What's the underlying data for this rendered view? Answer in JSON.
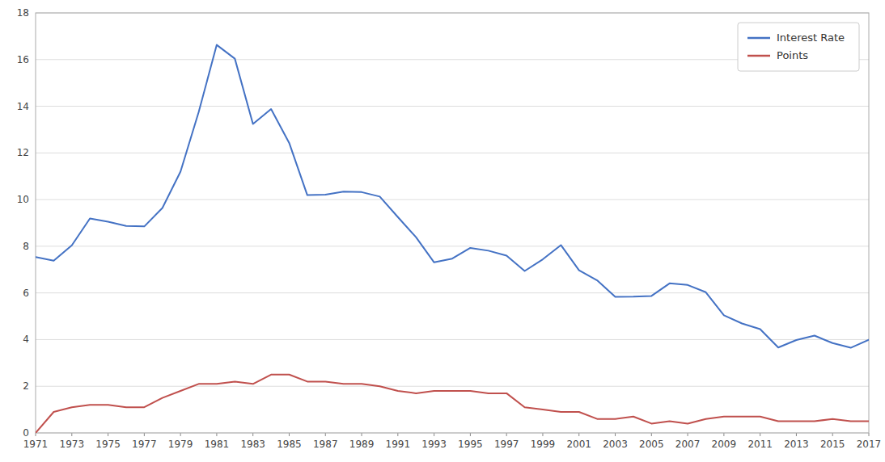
{
  "chart_data": {
    "type": "line",
    "x": [
      1971,
      1972,
      1973,
      1974,
      1975,
      1976,
      1977,
      1978,
      1979,
      1980,
      1981,
      1982,
      1983,
      1984,
      1985,
      1986,
      1987,
      1988,
      1989,
      1990,
      1991,
      1992,
      1993,
      1994,
      1995,
      1996,
      1997,
      1998,
      1999,
      2000,
      2001,
      2002,
      2003,
      2004,
      2005,
      2006,
      2007,
      2008,
      2009,
      2010,
      2011,
      2012,
      2013,
      2014,
      2015,
      2016,
      2017
    ],
    "series": [
      {
        "name": "Interest Rate",
        "color": "#4472C4",
        "values": [
          7.54,
          7.38,
          8.04,
          9.19,
          9.05,
          8.87,
          8.85,
          9.64,
          11.2,
          13.74,
          16.63,
          16.04,
          13.24,
          13.88,
          12.43,
          10.19,
          10.21,
          10.34,
          10.32,
          10.13,
          9.25,
          8.39,
          7.31,
          7.47,
          7.93,
          7.81,
          7.6,
          6.94,
          7.44,
          8.05,
          6.97,
          6.54,
          5.83,
          5.84,
          5.87,
          6.41,
          6.34,
          6.03,
          5.04,
          4.69,
          4.45,
          3.66,
          3.98,
          4.17,
          3.85,
          3.65,
          3.99
        ]
      },
      {
        "name": "Points",
        "color": "#C0504D",
        "values": [
          0.0,
          0.9,
          1.1,
          1.2,
          1.2,
          1.1,
          1.1,
          1.5,
          1.8,
          2.1,
          2.1,
          2.2,
          2.1,
          2.5,
          2.5,
          2.2,
          2.2,
          2.1,
          2.1,
          2.0,
          1.8,
          1.7,
          1.8,
          1.8,
          1.8,
          1.7,
          1.7,
          1.1,
          1.0,
          0.9,
          0.9,
          0.6,
          0.6,
          0.7,
          0.4,
          0.5,
          0.4,
          0.6,
          0.7,
          0.7,
          0.7,
          0.5,
          0.5,
          0.5,
          0.6,
          0.5,
          0.5
        ]
      }
    ],
    "xlim": [
      1971,
      2017
    ],
    "xticks": [
      1971,
      1973,
      1975,
      1977,
      1979,
      1981,
      1983,
      1985,
      1987,
      1989,
      1991,
      1993,
      1995,
      1997,
      1999,
      2001,
      2003,
      2005,
      2007,
      2009,
      2011,
      2013,
      2015,
      2017
    ],
    "ylim": [
      0,
      18
    ],
    "yticks": [
      0,
      2,
      4,
      6,
      8,
      10,
      12,
      14,
      16,
      18
    ],
    "grid": "y",
    "legend": "upper right"
  }
}
